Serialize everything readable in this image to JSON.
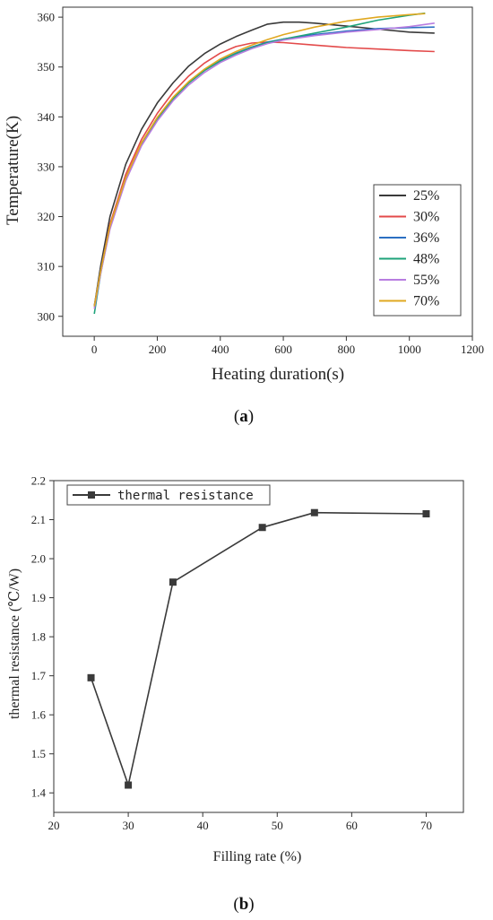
{
  "chart_data": [
    {
      "type": "line",
      "panel_label_open": "(",
      "panel_label_letter": "a",
      "panel_label_close": ")",
      "xlabel": "Heating duration(s)",
      "ylabel": "Temperature(K)",
      "xlim": [
        -100,
        1200
      ],
      "ylim": [
        296,
        362
      ],
      "xticks": [
        0,
        200,
        400,
        600,
        800,
        1000,
        1200
      ],
      "yticks": [
        300,
        310,
        320,
        330,
        340,
        350,
        360
      ],
      "legend_position": "bottom-right",
      "series": [
        {
          "name": "25%",
          "color": "#3a3a3a",
          "x": [
            0,
            20,
            50,
            100,
            150,
            200,
            250,
            300,
            350,
            400,
            450,
            500,
            550,
            600,
            650,
            700,
            800,
            900,
            1000,
            1080
          ],
          "y": [
            302,
            310,
            320,
            330.5,
            337.5,
            342.8,
            346.8,
            350.2,
            352.7,
            354.6,
            356.1,
            357.4,
            358.6,
            359.0,
            359.0,
            358.8,
            358.2,
            357.6,
            357.0,
            356.8
          ]
        },
        {
          "name": "30%",
          "color": "#e34a4a",
          "x": [
            0,
            20,
            50,
            100,
            150,
            200,
            250,
            300,
            350,
            400,
            450,
            500,
            550,
            600,
            700,
            800,
            900,
            1000,
            1080
          ],
          "y": [
            302,
            309,
            318.5,
            328.5,
            335.5,
            340.7,
            344.9,
            348.2,
            350.8,
            352.8,
            354.1,
            354.8,
            355.0,
            354.9,
            354.4,
            353.9,
            353.6,
            353.3,
            353.1
          ]
        },
        {
          "name": "36%",
          "color": "#2b6fc2",
          "x": [
            0,
            20,
            50,
            100,
            150,
            200,
            250,
            300,
            350,
            400,
            450,
            500,
            550,
            600,
            700,
            800,
            900,
            1000,
            1080
          ],
          "y": [
            302,
            309,
            318,
            327.8,
            334.7,
            339.8,
            343.8,
            346.9,
            349.4,
            351.3,
            352.8,
            354.0,
            355.0,
            355.6,
            356.5,
            357.2,
            357.7,
            357.9,
            358.0
          ]
        },
        {
          "name": "48%",
          "color": "#1ea37a",
          "x": [
            0,
            20,
            50,
            100,
            150,
            200,
            250,
            300,
            350,
            400,
            450,
            500,
            550,
            600,
            700,
            800,
            900,
            1000,
            1050
          ],
          "y": [
            300.5,
            308.5,
            317.8,
            327.6,
            334.6,
            339.6,
            343.6,
            346.8,
            349.3,
            351.2,
            352.7,
            353.9,
            354.9,
            355.6,
            356.8,
            358.0,
            359.4,
            360.4,
            360.8
          ]
        },
        {
          "name": "55%",
          "color": "#b87de0",
          "x": [
            0,
            20,
            50,
            100,
            150,
            200,
            250,
            300,
            350,
            400,
            450,
            500,
            550,
            600,
            700,
            800,
            900,
            1000,
            1080
          ],
          "y": [
            301.5,
            308.5,
            317.5,
            327.2,
            334.2,
            339.2,
            343.2,
            346.4,
            348.9,
            350.9,
            352.4,
            353.7,
            354.7,
            355.4,
            356.3,
            357.0,
            357.5,
            358.1,
            358.8
          ]
        },
        {
          "name": "70%",
          "color": "#e0a820",
          "x": [
            0,
            20,
            50,
            100,
            150,
            200,
            250,
            300,
            350,
            400,
            450,
            500,
            550,
            600,
            700,
            800,
            900,
            1000,
            1050
          ],
          "y": [
            302,
            309,
            318.2,
            327.8,
            334.8,
            339.9,
            343.9,
            347.1,
            349.6,
            351.6,
            353.1,
            354.4,
            355.5,
            356.5,
            358.0,
            359.2,
            360.0,
            360.5,
            360.7
          ]
        }
      ]
    },
    {
      "type": "line",
      "panel_label_open": "(",
      "panel_label_letter": "b",
      "panel_label_close": ")",
      "xlabel": "Filling rate (%)",
      "ylabel": "thermal resistance (℃/W)",
      "xlim": [
        20,
        75
      ],
      "ylim": [
        1.35,
        2.2
      ],
      "xticks": [
        20,
        30,
        40,
        50,
        60,
        70
      ],
      "yticks": [
        1.4,
        1.5,
        1.6,
        1.7,
        1.8,
        1.9,
        2.0,
        2.1,
        2.2
      ],
      "legend_position": "top-left",
      "series": [
        {
          "name": "thermal resistance",
          "color": "#3a3a3a",
          "marker": "square",
          "x": [
            25,
            30,
            36,
            48,
            55,
            70
          ],
          "y": [
            1.695,
            1.42,
            1.94,
            2.08,
            2.118,
            2.115
          ]
        }
      ]
    }
  ]
}
